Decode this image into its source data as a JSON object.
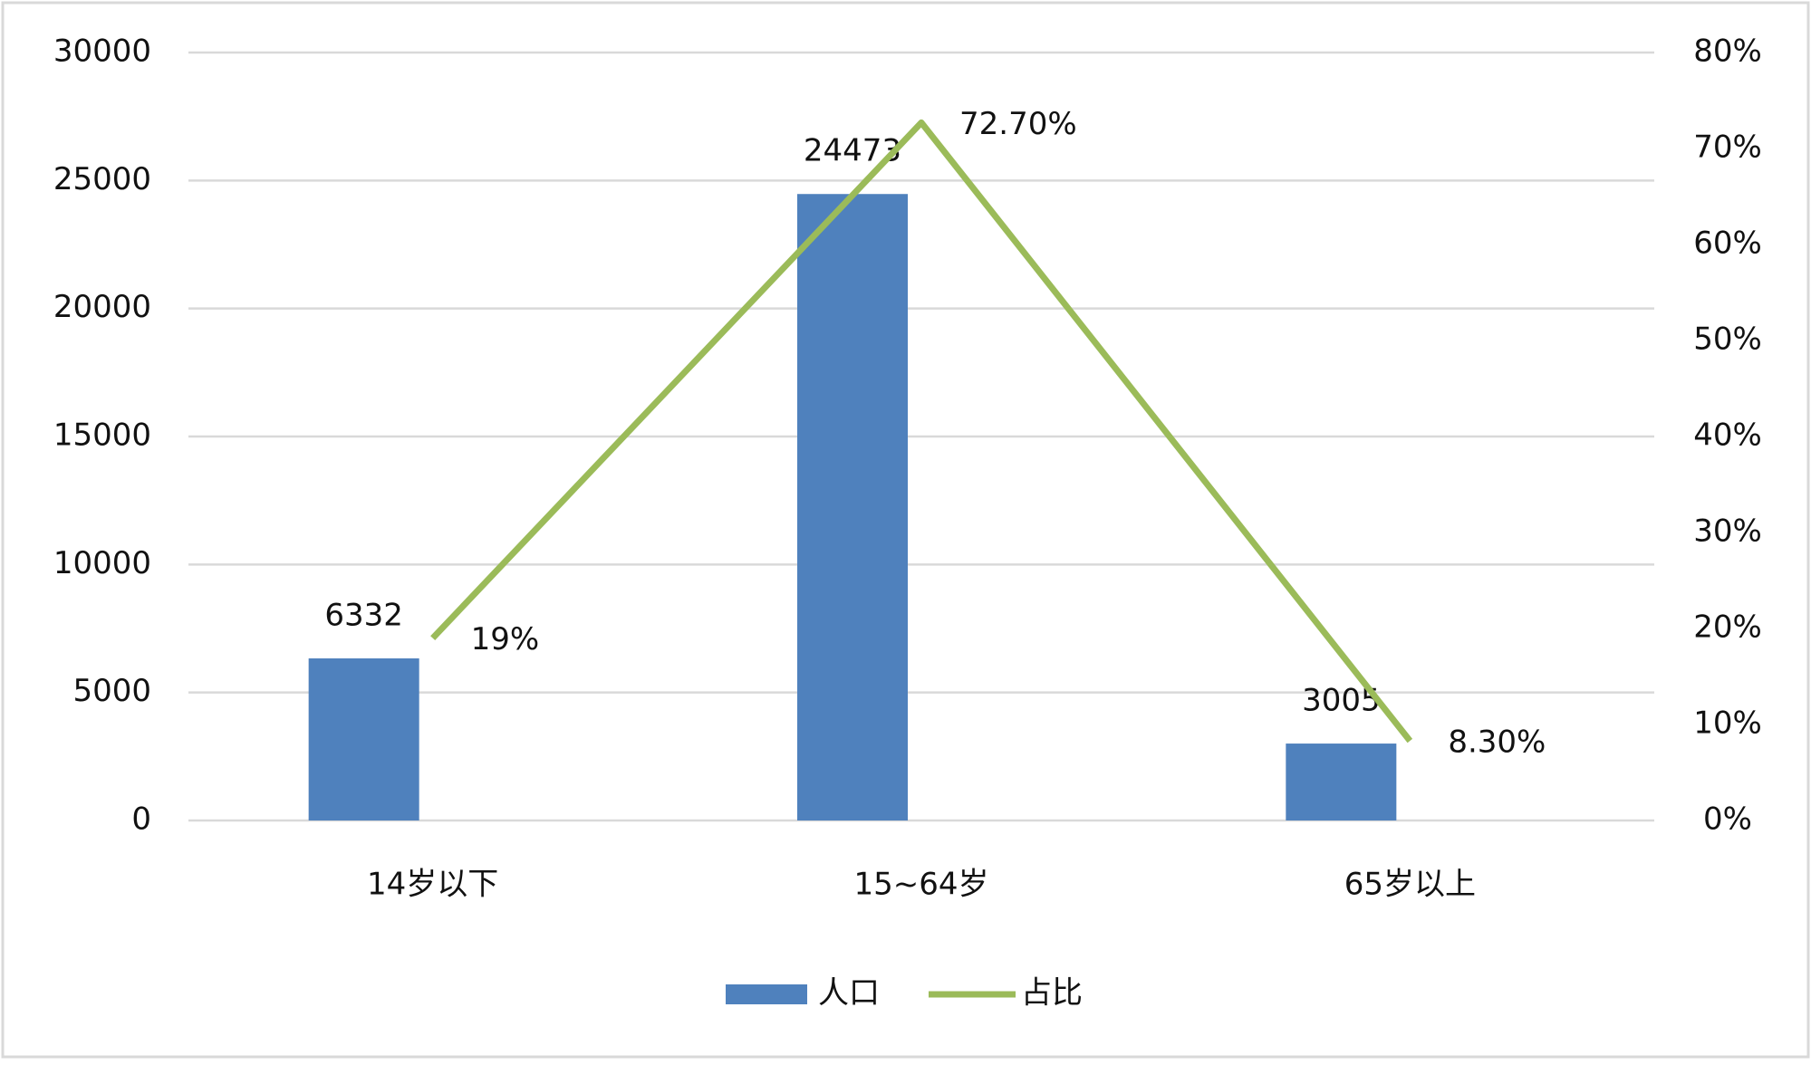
{
  "chart_data": {
    "type": "bar",
    "categories": [
      "14岁以下",
      "15~64岁",
      "65岁以上"
    ],
    "series": [
      {
        "name": "人口",
        "type": "bar",
        "color": "#4f81bd",
        "values": [
          6332,
          24473,
          3005
        ]
      },
      {
        "name": "占比",
        "type": "line",
        "axis": "y2",
        "color": "#9bbb59",
        "values": [
          19,
          72.7,
          8.3
        ],
        "value_labels": [
          "19%",
          "72.70%",
          "8.30%"
        ]
      }
    ],
    "ylim": [
      0,
      30000
    ],
    "yticks": [
      0,
      5000,
      10000,
      15000,
      20000,
      25000,
      30000
    ],
    "y2lim": [
      0,
      80
    ],
    "y2ticks": [
      {
        "value": 0,
        "label": "0%"
      },
      {
        "value": 10,
        "label": "10%"
      },
      {
        "value": 20,
        "label": "20%"
      },
      {
        "value": 30,
        "label": "30%"
      },
      {
        "value": 40,
        "label": "40%"
      },
      {
        "value": 50,
        "label": "50%"
      },
      {
        "value": 60,
        "label": "60%"
      },
      {
        "value": 70,
        "label": "70%"
      },
      {
        "value": 80,
        "label": "80%"
      }
    ],
    "grid": true,
    "legend": "bottom"
  }
}
